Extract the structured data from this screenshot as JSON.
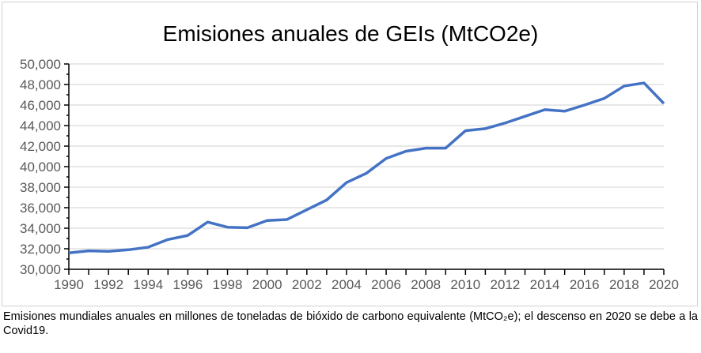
{
  "chart_data": {
    "type": "line",
    "title": "Emisiones anuales de GEIs (MtCO2e)",
    "xlabel": "",
    "ylabel": "",
    "ylim": [
      30000,
      50000
    ],
    "xlim": [
      1990,
      2020
    ],
    "grid": true,
    "y_ticks": [
      "30,000",
      "32,000",
      "34,000",
      "36,000",
      "38,000",
      "40,000",
      "42,000",
      "44,000",
      "46,000",
      "48,000",
      "50,000"
    ],
    "x_ticks": [
      "1990",
      "1992",
      "1994",
      "1996",
      "1998",
      "2000",
      "2002",
      "2004",
      "2006",
      "2008",
      "2010",
      "2012",
      "2014",
      "2016",
      "2018",
      "2020"
    ],
    "series": [
      {
        "name": "Emisiones",
        "color": "#4472c4",
        "x": [
          1990,
          1991,
          1992,
          1993,
          1994,
          1995,
          1996,
          1997,
          1998,
          1999,
          2000,
          2001,
          2002,
          2003,
          2004,
          2005,
          2006,
          2007,
          2008,
          2009,
          2010,
          2011,
          2012,
          2013,
          2014,
          2015,
          2016,
          2017,
          2018,
          2019,
          2020
        ],
        "values": [
          31600,
          31800,
          31750,
          31900,
          32150,
          32900,
          33300,
          34600,
          34100,
          34050,
          34750,
          34850,
          35800,
          36750,
          38450,
          39350,
          40800,
          41500,
          41800,
          41800,
          43500,
          43700,
          44250,
          44900,
          45550,
          45400,
          46000,
          46650,
          47850,
          48150,
          46150
        ]
      }
    ]
  },
  "caption": "Emisiones mundiales anuales en millones de toneladas de bióxido de carbono equivalente (MtCO₂e); el descenso en 2020 se debe a la Covid19."
}
